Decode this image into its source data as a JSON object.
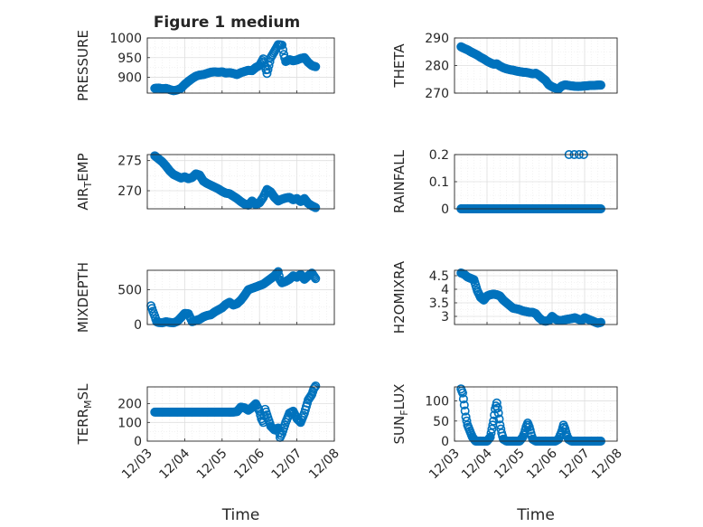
{
  "figure": {
    "title": "Figure 1 medium"
  },
  "colors": {
    "marker": "#0072BD",
    "axis": "#262626",
    "grid": "#dfdfdf",
    "background": "#ffffff"
  },
  "chart_data": [
    {
      "type": "scatter",
      "id": "pressure",
      "ylabel": "PRESSURE",
      "ylabel_sub": null,
      "ylim": [
        860,
        1000
      ],
      "yticks": [
        900,
        950,
        1000
      ],
      "ytick_labels": [
        "900",
        "950",
        "1000"
      ],
      "xticks": [
        "12/03",
        "12/04",
        "12/05",
        "12/06",
        "12/07",
        "12/08"
      ],
      "show_xticklabels": false,
      "xlabel": "",
      "grid": "on",
      "marker": "circle",
      "x": [
        0.2,
        0.3,
        0.4,
        0.5,
        0.6,
        0.7,
        0.8,
        0.9,
        1.0,
        1.1,
        1.2,
        1.3,
        1.4,
        1.5,
        1.6,
        1.7,
        1.8,
        1.9,
        2.0,
        2.1,
        2.2,
        2.3,
        2.4,
        2.5,
        2.6,
        2.7,
        2.8,
        2.9,
        3.0,
        3.1,
        3.2,
        3.3,
        3.4,
        3.5,
        3.6,
        3.65,
        3.7,
        3.8,
        3.9,
        4.0,
        4.1,
        4.2,
        4.3,
        4.4,
        4.5
      ],
      "y": [
        872,
        873,
        871,
        872,
        869,
        866,
        868,
        872,
        882,
        890,
        897,
        903,
        906,
        907,
        910,
        913,
        914,
        913,
        914,
        911,
        912,
        910,
        907,
        912,
        915,
        918,
        917,
        925,
        930,
        947,
        910,
        950,
        966,
        983,
        982,
        958,
        940,
        945,
        942,
        944,
        948,
        950,
        938,
        930,
        927
      ]
    },
    {
      "type": "scatter",
      "id": "theta",
      "ylabel": "THETA",
      "ylabel_sub": null,
      "ylim": [
        270,
        290
      ],
      "yticks": [
        270,
        280,
        290
      ],
      "ytick_labels": [
        "270",
        "280",
        "290"
      ],
      "xticks": [
        "12/03",
        "12/04",
        "12/05",
        "12/06",
        "12/07",
        "12/08"
      ],
      "show_xticklabels": false,
      "xlabel": "",
      "grid": "on",
      "marker": "circle",
      "x": [
        0.2,
        0.3,
        0.4,
        0.5,
        0.6,
        0.7,
        0.8,
        0.9,
        1.0,
        1.1,
        1.2,
        1.3,
        1.4,
        1.5,
        1.6,
        1.7,
        1.8,
        1.9,
        2.0,
        2.1,
        2.2,
        2.3,
        2.4,
        2.5,
        2.6,
        2.7,
        2.8,
        2.9,
        3.0,
        3.1,
        3.2,
        3.3,
        3.4,
        3.5,
        3.6,
        3.7,
        3.8,
        3.9,
        4.0,
        4.1,
        4.2,
        4.3,
        4.4,
        4.5
      ],
      "y": [
        286.8,
        286.2,
        285.7,
        285.0,
        284.4,
        283.8,
        283.0,
        282.4,
        281.6,
        281.0,
        280.5,
        280.6,
        279.8,
        279.2,
        278.8,
        278.5,
        278.3,
        278.0,
        277.8,
        277.6,
        277.5,
        277.3,
        277.0,
        277.2,
        276.5,
        275.5,
        274.6,
        273.0,
        272.3,
        271.8,
        271.5,
        272.6,
        273.0,
        272.8,
        272.6,
        272.5,
        272.4,
        272.5,
        272.6,
        272.7,
        272.8,
        272.8,
        272.9,
        272.9
      ]
    },
    {
      "type": "scatter",
      "id": "air_temp",
      "ylabel": "AIR",
      "ylabel_sub": "T",
      "ylabel_tail": "EMP",
      "ylim": [
        267,
        276
      ],
      "yticks": [
        270,
        275
      ],
      "ytick_labels": [
        "270",
        "275"
      ],
      "xticks": [
        "12/03",
        "12/04",
        "12/05",
        "12/06",
        "12/07",
        "12/08"
      ],
      "show_xticklabels": false,
      "xlabel": "",
      "grid": "on",
      "marker": "circle",
      "x": [
        0.2,
        0.3,
        0.4,
        0.5,
        0.6,
        0.7,
        0.8,
        0.9,
        1.0,
        1.1,
        1.2,
        1.3,
        1.4,
        1.5,
        1.6,
        1.7,
        1.8,
        1.9,
        2.0,
        2.1,
        2.2,
        2.3,
        2.4,
        2.5,
        2.6,
        2.7,
        2.8,
        2.9,
        3.0,
        3.1,
        3.2,
        3.3,
        3.4,
        3.5,
        3.6,
        3.7,
        3.8,
        3.9,
        4.0,
        4.1,
        4.2,
        4.3,
        4.4,
        4.5
      ],
      "y": [
        275.8,
        275.3,
        274.8,
        274.1,
        273.3,
        272.7,
        272.4,
        272.1,
        272.3,
        272.0,
        272.2,
        272.8,
        272.6,
        271.6,
        271.2,
        270.9,
        270.6,
        270.3,
        269.9,
        269.6,
        269.5,
        269.1,
        268.7,
        268.2,
        267.8,
        267.6,
        268.3,
        267.7,
        268.0,
        268.9,
        270.2,
        269.8,
        268.9,
        268.3,
        268.6,
        268.8,
        268.9,
        268.5,
        268.7,
        268.2,
        268.7,
        267.9,
        267.5,
        267.2
      ]
    },
    {
      "type": "scatter",
      "id": "rainfall",
      "ylabel": "RAINFALL",
      "ylabel_sub": null,
      "ylim": [
        0,
        0.2
      ],
      "yticks": [
        0,
        0.1,
        0.2
      ],
      "ytick_labels": [
        "0",
        "0.1",
        "0.2"
      ],
      "xticks": [
        "12/03",
        "12/04",
        "12/05",
        "12/06",
        "12/07",
        "12/08"
      ],
      "show_xticklabels": false,
      "xlabel": "",
      "grid": "on",
      "marker": "circle",
      "x": [
        0.2,
        0.3,
        0.4,
        0.5,
        0.6,
        0.7,
        0.8,
        0.9,
        1.0,
        1.1,
        1.2,
        1.3,
        1.4,
        1.5,
        1.6,
        1.7,
        1.8,
        1.9,
        2.0,
        2.1,
        2.2,
        2.3,
        2.4,
        2.5,
        2.6,
        2.7,
        2.8,
        2.9,
        3.0,
        3.1,
        3.2,
        3.3,
        3.4,
        3.5,
        3.6,
        3.7,
        3.8,
        3.9,
        4.0,
        4.1,
        4.2,
        4.3,
        4.4,
        4.5
      ],
      "y": [
        0,
        0,
        0,
        0,
        0,
        0,
        0,
        0,
        0,
        0,
        0,
        0,
        0,
        0,
        0,
        0,
        0,
        0,
        0,
        0,
        0,
        0,
        0,
        0,
        0,
        0,
        0,
        0,
        0,
        0,
        0,
        0,
        0,
        0,
        0,
        0,
        0,
        0,
        0,
        0,
        0,
        0,
        0,
        0
      ],
      "extra_x": [
        3.52,
        3.68,
        3.83,
        3.97
      ],
      "extra_y": [
        0.2,
        0.2,
        0.2,
        0.2
      ]
    },
    {
      "type": "scatter",
      "id": "mixdepth",
      "ylabel": "MIXDEPTH",
      "ylabel_sub": null,
      "ylim": [
        0,
        780
      ],
      "yticks": [
        0,
        500
      ],
      "ytick_labels": [
        "0",
        "500"
      ],
      "xticks": [
        "12/03",
        "12/04",
        "12/05",
        "12/06",
        "12/07",
        "12/08"
      ],
      "show_xticklabels": false,
      "xlabel": "",
      "grid": "on",
      "marker": "circle",
      "x": [
        0.1,
        0.15,
        0.2,
        0.25,
        0.3,
        0.4,
        0.5,
        0.6,
        0.7,
        0.8,
        0.9,
        1.0,
        1.1,
        1.2,
        1.3,
        1.4,
        1.5,
        1.6,
        1.7,
        1.8,
        1.9,
        2.0,
        2.1,
        2.2,
        2.3,
        2.4,
        2.5,
        2.6,
        2.7,
        2.8,
        2.9,
        3.0,
        3.1,
        3.2,
        3.3,
        3.4,
        3.5,
        3.55,
        3.6,
        3.7,
        3.8,
        3.9,
        4.0,
        4.1,
        4.2,
        4.3,
        4.4,
        4.5
      ],
      "y": [
        270,
        190,
        120,
        40,
        30,
        25,
        40,
        30,
        25,
        45,
        100,
        160,
        155,
        40,
        60,
        75,
        110,
        130,
        140,
        180,
        210,
        240,
        290,
        320,
        280,
        300,
        350,
        420,
        500,
        520,
        540,
        560,
        580,
        620,
        660,
        700,
        760,
        640,
        600,
        620,
        650,
        700,
        680,
        720,
        650,
        700,
        740,
        660
      ]
    },
    {
      "type": "scatter",
      "id": "h2omixra",
      "ylabel": "H2OMIXRA",
      "ylabel_sub": null,
      "ylim": [
        2.7,
        4.7
      ],
      "yticks": [
        3,
        3.5,
        4,
        4.5
      ],
      "ytick_labels": [
        "3",
        "3.5",
        "4",
        "4.5"
      ],
      "xticks": [
        "12/03",
        "12/04",
        "12/05",
        "12/06",
        "12/07",
        "12/08"
      ],
      "show_xticklabels": false,
      "xlabel": "",
      "grid": "on",
      "marker": "circle",
      "x": [
        0.2,
        0.3,
        0.4,
        0.5,
        0.6,
        0.7,
        0.8,
        0.9,
        1.0,
        1.1,
        1.2,
        1.3,
        1.4,
        1.5,
        1.6,
        1.7,
        1.8,
        1.9,
        2.0,
        2.1,
        2.2,
        2.3,
        2.4,
        2.5,
        2.6,
        2.7,
        2.8,
        2.9,
        3.0,
        3.1,
        3.2,
        3.3,
        3.4,
        3.5,
        3.6,
        3.7,
        3.8,
        3.9,
        4.0,
        4.1,
        4.2,
        4.3,
        4.4,
        4.5
      ],
      "y": [
        4.6,
        4.55,
        4.45,
        4.4,
        4.35,
        3.95,
        3.7,
        3.6,
        3.75,
        3.8,
        3.82,
        3.8,
        3.75,
        3.6,
        3.5,
        3.4,
        3.3,
        3.28,
        3.25,
        3.2,
        3.18,
        3.15,
        3.15,
        3.1,
        2.95,
        2.85,
        2.82,
        2.85,
        3.0,
        2.9,
        2.85,
        2.85,
        2.88,
        2.9,
        2.92,
        2.95,
        2.9,
        2.85,
        2.95,
        2.9,
        2.85,
        2.8,
        2.75,
        2.78
      ]
    },
    {
      "type": "scatter",
      "id": "terr_msl",
      "ylabel": "TERR",
      "ylabel_sub": "M",
      "ylabel_tail": "SL",
      "ylim": [
        0,
        290
      ],
      "yticks": [
        0,
        100,
        200
      ],
      "ytick_labels": [
        "0",
        "100",
        "200"
      ],
      "xticks": [
        "12/03",
        "12/04",
        "12/05",
        "12/06",
        "12/07",
        "12/08"
      ],
      "show_xticklabels": true,
      "xlabel": "Time",
      "grid": "on",
      "marker": "circle",
      "x": [
        0.2,
        0.3,
        0.4,
        0.5,
        0.6,
        0.7,
        0.8,
        0.9,
        1.0,
        1.1,
        1.2,
        1.3,
        1.4,
        1.5,
        1.6,
        1.7,
        1.8,
        1.9,
        2.0,
        2.1,
        2.2,
        2.3,
        2.4,
        2.5,
        2.6,
        2.7,
        2.8,
        2.9,
        3.0,
        3.05,
        3.1,
        3.15,
        3.2,
        3.3,
        3.4,
        3.5,
        3.55,
        3.6,
        3.7,
        3.8,
        3.9,
        4.0,
        4.1,
        4.2,
        4.3,
        4.4,
        4.45,
        4.5
      ],
      "y": [
        155,
        155,
        155,
        155,
        155,
        155,
        155,
        155,
        155,
        155,
        155,
        155,
        155,
        155,
        155,
        155,
        155,
        155,
        155,
        155,
        155,
        155,
        158,
        182,
        178,
        165,
        180,
        200,
        160,
        120,
        100,
        170,
        140,
        80,
        60,
        70,
        20,
        40,
        100,
        150,
        160,
        120,
        100,
        150,
        220,
        250,
        280,
        295
      ]
    },
    {
      "type": "scatter",
      "id": "sun_flux",
      "ylabel": "SUN",
      "ylabel_sub": "F",
      "ylabel_tail": "LUX",
      "ylim": [
        0,
        135
      ],
      "yticks": [
        0,
        50,
        100
      ],
      "ytick_labels": [
        "0",
        "50",
        "100"
      ],
      "xticks": [
        "12/03",
        "12/04",
        "12/05",
        "12/06",
        "12/07",
        "12/08"
      ],
      "show_xticklabels": true,
      "xlabel": "Time",
      "grid": "on",
      "marker": "circle",
      "x": [
        0.2,
        0.25,
        0.3,
        0.35,
        0.4,
        0.45,
        0.5,
        0.55,
        0.6,
        0.65,
        0.7,
        0.8,
        0.9,
        1.0,
        1.1,
        1.15,
        1.2,
        1.25,
        1.3,
        1.35,
        1.4,
        1.45,
        1.5,
        1.6,
        1.7,
        1.8,
        1.9,
        2.0,
        2.1,
        2.15,
        2.2,
        2.25,
        2.3,
        2.35,
        2.4,
        2.5,
        2.6,
        2.7,
        2.8,
        2.9,
        3.0,
        3.1,
        3.2,
        3.25,
        3.3,
        3.35,
        3.4,
        3.45,
        3.5,
        3.6,
        3.7,
        3.8,
        3.9,
        4.0,
        4.1,
        4.2,
        4.3,
        4.4,
        4.5
      ],
      "y": [
        130,
        120,
        90,
        60,
        40,
        30,
        20,
        10,
        5,
        0,
        0,
        0,
        0,
        0,
        10,
        30,
        50,
        80,
        95,
        70,
        40,
        20,
        5,
        0,
        0,
        0,
        0,
        0,
        10,
        20,
        35,
        45,
        35,
        20,
        5,
        0,
        0,
        0,
        0,
        0,
        0,
        0,
        5,
        15,
        25,
        40,
        30,
        15,
        5,
        0,
        0,
        0,
        0,
        0,
        0,
        0,
        0,
        0,
        0
      ]
    }
  ]
}
